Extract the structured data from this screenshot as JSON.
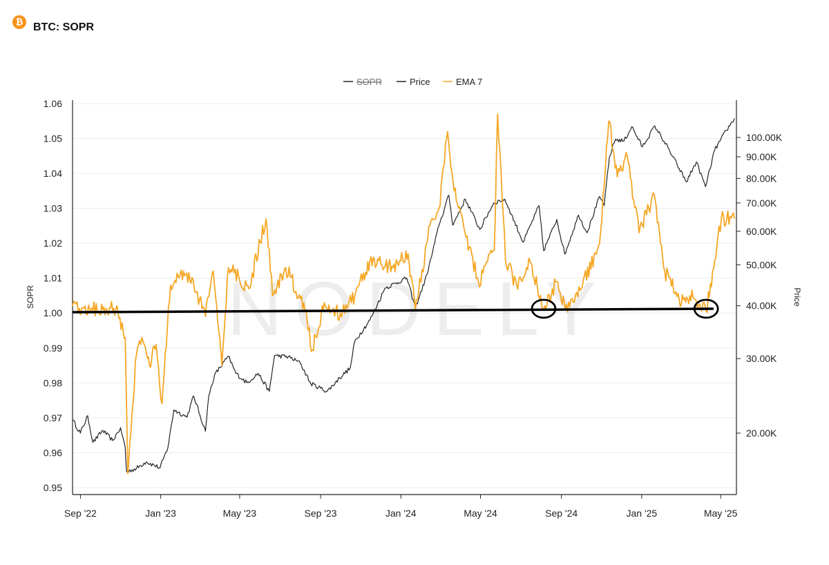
{
  "header": {
    "title": "BTC: SOPR",
    "logo_glyph": "₿",
    "logo_color": "#f7931a"
  },
  "chart_data": {
    "type": "line",
    "watermark": "NODELY",
    "legend": {
      "placement": "top-center",
      "items": [
        {
          "label": "SOPR",
          "color": "#222222",
          "struck": true
        },
        {
          "label": "Price",
          "color": "#222222",
          "struck": false
        },
        {
          "label": "EMA 7",
          "color": "#f5a623",
          "struck": false
        }
      ]
    },
    "x_ticks": [
      "Sep '22",
      "Jan '23",
      "May '23",
      "Sep '23",
      "Jan '24",
      "May '24",
      "Sep '24",
      "Jan '25",
      "May '25"
    ],
    "x_range": [
      "2022-08-20",
      "2025-05-25"
    ],
    "y_left": {
      "label": "SOPR",
      "range": [
        0.948,
        1.061
      ],
      "ticks": [
        "0.95",
        "0.96",
        "0.97",
        "0.98",
        "0.99",
        "1.00",
        "1.01",
        "1.02",
        "1.03",
        "1.04",
        "1.05",
        "1.06"
      ]
    },
    "y_right": {
      "label": "Price",
      "scale": "log",
      "ticks": [
        {
          "label": "20.00K",
          "value": 20000
        },
        {
          "label": "30.00K",
          "value": 30000
        },
        {
          "label": "40.00K",
          "value": 40000
        },
        {
          "label": "50.00K",
          "value": 50000
        },
        {
          "label": "60.00K",
          "value": 60000
        },
        {
          "label": "70.00K",
          "value": 70000
        },
        {
          "label": "80.00K",
          "value": 80000
        },
        {
          "label": "90.00K",
          "value": 90000
        },
        {
          "label": "100.00K",
          "value": 100000
        }
      ]
    },
    "grid": true,
    "reference_line": {
      "value": 1.0,
      "color": "#000000"
    },
    "annotations": [
      {
        "type": "circle",
        "date": "2024-08-05",
        "value": 1.0
      },
      {
        "type": "circle",
        "date": "2025-04-09",
        "value": 1.0
      }
    ],
    "series": [
      {
        "name": "Price",
        "color": "#222222",
        "axis": "right",
        "points": [
          [
            "2022-08-20",
            21500
          ],
          [
            "2022-09-01",
            20000
          ],
          [
            "2022-09-12",
            22000
          ],
          [
            "2022-09-20",
            19000
          ],
          [
            "2022-10-05",
            20300
          ],
          [
            "2022-10-20",
            19200
          ],
          [
            "2022-11-01",
            20600
          ],
          [
            "2022-11-08",
            18500
          ],
          [
            "2022-11-10",
            16200
          ],
          [
            "2022-11-25",
            16500
          ],
          [
            "2022-12-10",
            17100
          ],
          [
            "2022-12-31",
            16550
          ],
          [
            "2023-01-12",
            18500
          ],
          [
            "2023-01-21",
            22700
          ],
          [
            "2023-02-10",
            21800
          ],
          [
            "2023-02-20",
            24500
          ],
          [
            "2023-03-10",
            20200
          ],
          [
            "2023-03-15",
            24500
          ],
          [
            "2023-03-24",
            27500
          ],
          [
            "2023-04-14",
            30400
          ],
          [
            "2023-04-25",
            27700
          ],
          [
            "2023-05-12",
            26300
          ],
          [
            "2023-05-29",
            27700
          ],
          [
            "2023-06-15",
            25100
          ],
          [
            "2023-06-23",
            30500
          ],
          [
            "2023-07-14",
            30300
          ],
          [
            "2023-08-01",
            29300
          ],
          [
            "2023-08-17",
            26200
          ],
          [
            "2023-09-11",
            25100
          ],
          [
            "2023-09-30",
            27000
          ],
          [
            "2023-10-16",
            28500
          ],
          [
            "2023-10-23",
            33000
          ],
          [
            "2023-11-15",
            37000
          ],
          [
            "2023-12-08",
            44000
          ],
          [
            "2024-01-10",
            46500
          ],
          [
            "2024-01-23",
            39500
          ],
          [
            "2024-02-10",
            47500
          ],
          [
            "2024-02-28",
            62000
          ],
          [
            "2024-03-14",
            73000
          ],
          [
            "2024-03-20",
            62000
          ],
          [
            "2024-04-08",
            71500
          ],
          [
            "2024-04-30",
            60600
          ],
          [
            "2024-05-21",
            70000
          ],
          [
            "2024-06-07",
            71500
          ],
          [
            "2024-07-05",
            56500
          ],
          [
            "2024-07-29",
            69000
          ],
          [
            "2024-08-05",
            54000
          ],
          [
            "2024-08-25",
            64000
          ],
          [
            "2024-09-06",
            53000
          ],
          [
            "2024-09-27",
            65500
          ],
          [
            "2024-10-10",
            59500
          ],
          [
            "2024-10-29",
            72500
          ],
          [
            "2024-11-05",
            69000
          ],
          [
            "2024-11-13",
            90000
          ],
          [
            "2024-11-22",
            99000
          ],
          [
            "2024-12-05",
            98000
          ],
          [
            "2024-12-17",
            106000
          ],
          [
            "2025-01-02",
            95000
          ],
          [
            "2025-01-21",
            106500
          ],
          [
            "2025-02-04",
            98000
          ],
          [
            "2025-02-27",
            84500
          ],
          [
            "2025-03-10",
            78500
          ],
          [
            "2025-03-25",
            87500
          ],
          [
            "2025-04-08",
            76500
          ],
          [
            "2025-04-22",
            93500
          ],
          [
            "2025-05-10",
            104000
          ],
          [
            "2025-05-22",
            111000
          ]
        ]
      },
      {
        "name": "EMA 7",
        "color": "#f5a623",
        "axis": "left",
        "points": [
          [
            "2022-08-20",
            1.002
          ],
          [
            "2022-09-15",
            1.001
          ],
          [
            "2022-10-15",
            1.0015
          ],
          [
            "2022-10-28",
            1.0005
          ],
          [
            "2022-11-08",
            0.993
          ],
          [
            "2022-11-12",
            0.954
          ],
          [
            "2022-11-25",
            0.988
          ],
          [
            "2022-12-05",
            0.992
          ],
          [
            "2022-12-15",
            0.985
          ],
          [
            "2022-12-25",
            0.991
          ],
          [
            "2023-01-03",
            0.974
          ],
          [
            "2023-01-16",
            1.008
          ],
          [
            "2023-02-08",
            1.011
          ],
          [
            "2023-02-24",
            1.006
          ],
          [
            "2023-03-10",
            0.999
          ],
          [
            "2023-03-22",
            1.012
          ],
          [
            "2023-04-04",
            0.985
          ],
          [
            "2023-04-14",
            1.013
          ],
          [
            "2023-05-15",
            1.007
          ],
          [
            "2023-06-10",
            1.027
          ],
          [
            "2023-06-20",
            1.005
          ],
          [
            "2023-07-10",
            1.013
          ],
          [
            "2023-08-10",
            1.001
          ],
          [
            "2023-08-18",
            0.989
          ],
          [
            "2023-09-05",
            1.001
          ],
          [
            "2023-10-01",
            1.0
          ],
          [
            "2023-10-23",
            1.005
          ],
          [
            "2023-11-15",
            1.015
          ],
          [
            "2023-12-20",
            1.013
          ],
          [
            "2024-01-12",
            1.017
          ],
          [
            "2024-01-23",
            1.001
          ],
          [
            "2024-02-14",
            1.025
          ],
          [
            "2024-02-28",
            1.03
          ],
          [
            "2024-03-12",
            1.052
          ],
          [
            "2024-03-22",
            1.035
          ],
          [
            "2024-04-14",
            1.019
          ],
          [
            "2024-04-28",
            1.009
          ],
          [
            "2024-05-22",
            1.018
          ],
          [
            "2024-05-27",
            1.057
          ],
          [
            "2024-06-08",
            1.015
          ],
          [
            "2024-06-25",
            1.008
          ],
          [
            "2024-07-15",
            1.015
          ],
          [
            "2024-08-05",
            1.001
          ],
          [
            "2024-08-25",
            1.009
          ],
          [
            "2024-09-07",
            1.001
          ],
          [
            "2024-10-01",
            1.007
          ],
          [
            "2024-10-29",
            1.02
          ],
          [
            "2024-11-12",
            1.055
          ],
          [
            "2024-11-25",
            1.039
          ],
          [
            "2024-12-10",
            1.045
          ],
          [
            "2024-12-28",
            1.023
          ],
          [
            "2025-01-20",
            1.034
          ],
          [
            "2025-02-05",
            1.012
          ],
          [
            "2025-02-27",
            1.004
          ],
          [
            "2025-03-15",
            1.005
          ],
          [
            "2025-04-09",
            1.0005
          ],
          [
            "2025-04-22",
            1.015
          ],
          [
            "2025-05-02",
            1.027
          ],
          [
            "2025-05-22",
            1.027
          ]
        ]
      }
    ]
  }
}
